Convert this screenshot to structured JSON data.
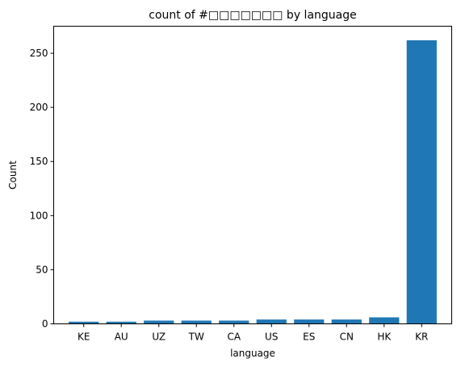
{
  "chart_data": {
    "type": "bar",
    "title": "count of #□□□□□□□ by language",
    "xlabel": "language",
    "ylabel": "Count",
    "categories": [
      "KE",
      "AU",
      "UZ",
      "TW",
      "CA",
      "US",
      "ES",
      "CN",
      "HK",
      "KR"
    ],
    "values": [
      2,
      2,
      3,
      3,
      3,
      4,
      4,
      4,
      6,
      262
    ],
    "ylim": [
      0,
      275
    ],
    "yticks": [
      0,
      50,
      100,
      150,
      200,
      250
    ],
    "grid": false,
    "bar_color": "#1f77b4"
  }
}
